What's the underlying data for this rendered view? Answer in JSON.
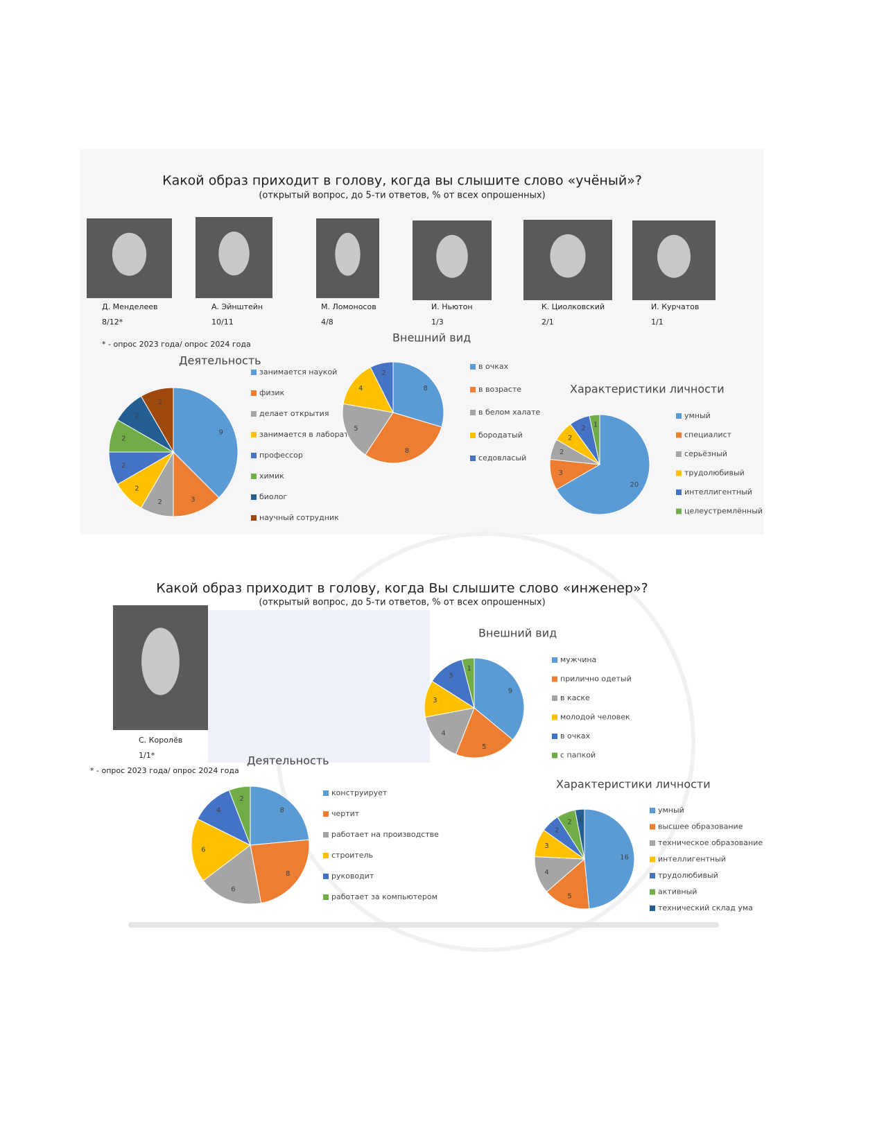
{
  "sections": [
    {
      "title": "Какой образ приходит в голову, когда вы слышите слово «учёный»?",
      "subtitle": "(открытый вопрос, до 5-ти ответов, % от всех опрошенных)",
      "people": [
        {
          "name": "Д. Менделеев",
          "ratio": "8/12*"
        },
        {
          "name": "А. Эйнштейн",
          "ratio": "10/11"
        },
        {
          "name": "М. Ломоносов",
          "ratio": "4/8"
        },
        {
          "name": "И. Ньютон",
          "ratio": "1/3"
        },
        {
          "name": "К. Циолковский",
          "ratio": "2/1"
        },
        {
          "name": "И. Курчатов",
          "ratio": "1/1"
        }
      ],
      "note": "* - опрос 2023 года/ опрос 2024 года"
    },
    {
      "title": "Какой образ приходит в голову, когда Вы слышите слово «инженер»?",
      "subtitle": "(открытый вопрос, до 5-ти ответов, % от всех опрошенных)",
      "people": [
        {
          "name": "С. Королёв",
          "ratio": "1/1*"
        }
      ],
      "note": "* - опрос 2023 года/ опрос 2024 года"
    }
  ],
  "chart_data": [
    {
      "type": "pie",
      "title": "Деятельность",
      "categories": [
        "занимается наукой",
        "физик",
        "делает открытия",
        "занимается в лаборатории",
        "профессор",
        "химик",
        "биолог",
        "научный сотрудник"
      ],
      "values": [
        9,
        3,
        2,
        2,
        2,
        2,
        2,
        2
      ],
      "colors": [
        "#5b9bd5",
        "#ed7d31",
        "#a5a5a5",
        "#ffc000",
        "#4472c4",
        "#70ad47",
        "#255e91",
        "#9e480e"
      ]
    },
    {
      "type": "pie",
      "title": "Внешний вид",
      "categories": [
        "в очках",
        "в возрасте",
        "в белом халате",
        "бородатый",
        "седовласый"
      ],
      "values": [
        8,
        8,
        5,
        4,
        2
      ],
      "colors": [
        "#5b9bd5",
        "#ed7d31",
        "#a5a5a5",
        "#ffc000",
        "#4472c4"
      ]
    },
    {
      "type": "pie",
      "title": "Характеристики личности",
      "categories": [
        "умный",
        "специалист",
        "серьёзный",
        "трудолюбивый",
        "интеллигентный",
        "целеустремлённый"
      ],
      "values": [
        20,
        3,
        2,
        2,
        2,
        1
      ],
      "colors": [
        "#5b9bd5",
        "#ed7d31",
        "#a5a5a5",
        "#ffc000",
        "#4472c4",
        "#70ad47"
      ]
    },
    {
      "type": "pie",
      "title": "Внешний вид",
      "categories": [
        "мужчина",
        "прилично одетый",
        "в каске",
        "молодой человек",
        "в очках",
        "с папкой"
      ],
      "values": [
        9,
        5,
        4,
        3,
        3,
        1
      ],
      "colors": [
        "#5b9bd5",
        "#ed7d31",
        "#a5a5a5",
        "#ffc000",
        "#4472c4",
        "#70ad47"
      ]
    },
    {
      "type": "pie",
      "title": "Деятельность",
      "categories": [
        "конструирует",
        "чертит",
        "работает на производстве",
        "строитель",
        "руководит",
        "работает за компьютером"
      ],
      "values": [
        8,
        8,
        6,
        6,
        4,
        2
      ],
      "colors": [
        "#5b9bd5",
        "#ed7d31",
        "#a5a5a5",
        "#ffc000",
        "#4472c4",
        "#70ad47"
      ]
    },
    {
      "type": "pie",
      "title": "Характеристики личности",
      "categories": [
        "умный",
        "высшее образование",
        "техническое образование",
        "интеллигентный",
        "трудолюбивый",
        "активный",
        "технический склад ума"
      ],
      "values": [
        16,
        5,
        4,
        3,
        2,
        2,
        1
      ],
      "colors": [
        "#5b9bd5",
        "#ed7d31",
        "#a5a5a5",
        "#ffc000",
        "#4472c4",
        "#70ad47",
        "#255e91"
      ]
    }
  ]
}
